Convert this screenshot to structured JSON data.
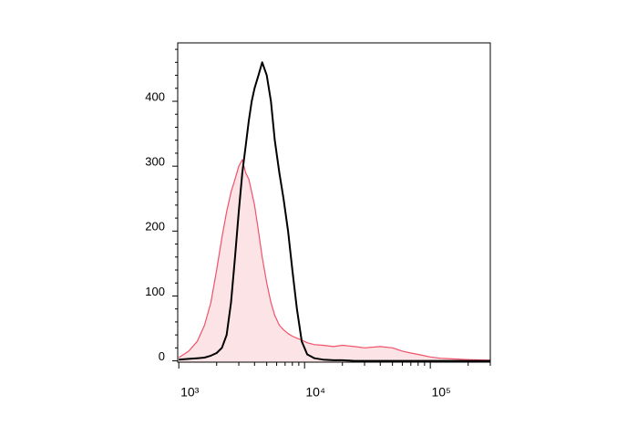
{
  "chart_data": {
    "type": "histogram_overlay",
    "xscale": "log",
    "xlim": [
      980,
      300000
    ],
    "ylim": [
      -2,
      490
    ],
    "xticks": [
      {
        "value": 1000,
        "label": "10³"
      },
      {
        "value": 10000,
        "label": "10⁴"
      },
      {
        "value": 100000,
        "label": "10⁵"
      }
    ],
    "xticks_minor": [
      2000,
      3000,
      4000,
      5000,
      6000,
      7000,
      8000,
      9000,
      20000,
      30000,
      40000,
      50000,
      60000,
      70000,
      80000,
      90000,
      200000,
      300000
    ],
    "yticks": [
      0,
      100,
      200,
      300,
      400
    ],
    "yticks_minor": [
      20,
      40,
      60,
      80,
      120,
      140,
      160,
      180,
      220,
      240,
      260,
      280,
      320,
      340,
      360,
      380,
      420,
      440,
      460,
      480
    ],
    "x": [
      1000,
      1200,
      1400,
      1600,
      1800,
      2000,
      2200,
      2400,
      2600,
      2800,
      3000,
      3200,
      3400,
      3600,
      3800,
      4000,
      4300,
      4600,
      5000,
      5400,
      5800,
      6300,
      6800,
      7400,
      8000,
      8700,
      9500,
      10500,
      12000,
      14000,
      17000,
      20000,
      25000,
      30000,
      40000,
      50000,
      60000,
      70000,
      80000,
      100000,
      120000,
      150000,
      200000,
      300000
    ],
    "series": [
      {
        "color": "#f0526a",
        "fill": "#fce3e6",
        "values": [
          5,
          15,
          30,
          55,
          90,
          140,
          190,
          230,
          260,
          280,
          300,
          310,
          290,
          280,
          260,
          240,
          200,
          160,
          120,
          90,
          70,
          55,
          48,
          42,
          38,
          35,
          32,
          28,
          25,
          24,
          22,
          24,
          22,
          20,
          22,
          20,
          15,
          12,
          10,
          6,
          4,
          3,
          2,
          1
        ]
      },
      {
        "color": "#000000",
        "values": [
          2,
          3,
          4,
          5,
          8,
          12,
          20,
          40,
          90,
          160,
          230,
          290,
          330,
          370,
          400,
          420,
          440,
          460,
          440,
          400,
          340,
          290,
          250,
          200,
          140,
          80,
          30,
          10,
          4,
          2,
          1,
          1,
          0,
          0,
          0,
          0,
          0,
          0,
          0,
          0,
          0,
          0,
          0,
          0
        ]
      }
    ]
  }
}
